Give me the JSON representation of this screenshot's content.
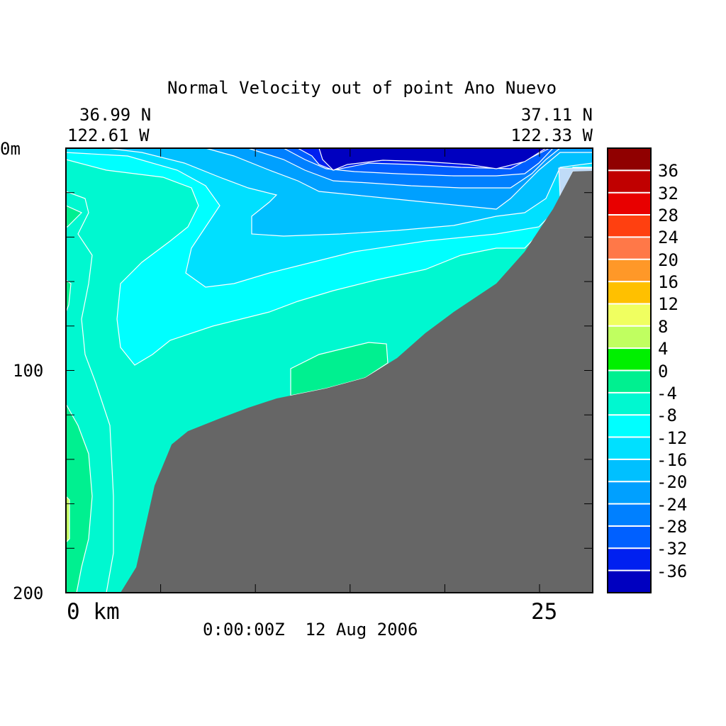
{
  "chart_data": {
    "type": "heatmap",
    "subtype": "filled-contour-section",
    "title": "Normal Velocity out of point Ano Nuevo",
    "start_location": {
      "lat": "36.99 N",
      "lon": "122.61 W"
    },
    "end_location": {
      "lat": "37.11 N",
      "lon": "122.33 W"
    },
    "timestamp": "0:00:00Z  12 Aug 2006",
    "x_axis": {
      "label_left": "0 km",
      "label_right": "25",
      "range_km": [
        0,
        27.8
      ],
      "tick_step_km": 5
    },
    "y_axis": {
      "label_top": "0m",
      "label_mid": "100",
      "label_bottom": "200",
      "range_m": [
        0,
        200
      ],
      "inverted": true,
      "tick_step_m": 20
    },
    "colorbar": {
      "levels": [
        "36",
        "32",
        "28",
        "24",
        "20",
        "16",
        "12",
        "8",
        "4",
        "0",
        "-4",
        "-8",
        "-12",
        "-16",
        "-20",
        "-24",
        "-28",
        "-32",
        "-36"
      ],
      "colors": [
        "#900000",
        "#c00000",
        "#e80000",
        "#ff4010",
        "#ff7848",
        "#ff9828",
        "#ffc000",
        "#f0ff60",
        "#c0ff60",
        "#00f000",
        "#00f090",
        "#00f8d0",
        "#00ffff",
        "#00e0ff",
        "#00c0ff",
        "#00a0ff",
        "#0080ff",
        "#0060ff",
        "#0020f0",
        "#0000c0"
      ]
    },
    "seafloor_color": "#666666",
    "seafloor_profile_km_m": [
      [
        2.88,
        200
      ],
      [
        3.71,
        188.5
      ],
      [
        4.68,
        151.8
      ],
      [
        5.58,
        133.3
      ],
      [
        6.44,
        127.3
      ],
      [
        8.12,
        121.6
      ],
      [
        9.62,
        116.8
      ],
      [
        11.12,
        112.6
      ],
      [
        13.73,
        108.1
      ],
      [
        15.79,
        103.3
      ],
      [
        17.48,
        94.4
      ],
      [
        18.97,
        83.2
      ],
      [
        20.47,
        73.7
      ],
      [
        22.72,
        60.9
      ],
      [
        24.21,
        46.6
      ],
      [
        25.71,
        27.4
      ],
      [
        26.76,
        10.5
      ],
      [
        27.8,
        10.2
      ]
    ],
    "grid": false
  }
}
